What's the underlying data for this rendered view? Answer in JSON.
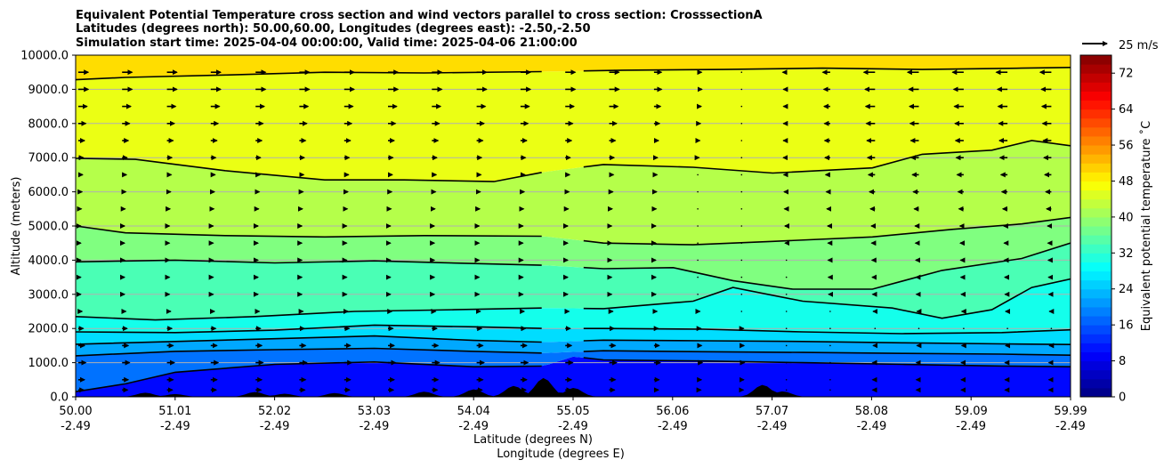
{
  "chart_data": {
    "type": "heatmap",
    "title_lines": [
      "Equivalent Potential Temperature cross section and wind vectors parallel to cross section: CrosssectionA",
      "Latitudes (degrees north): 50.00,60.00, Longitudes (degrees east): -2.50,-2.50",
      "Simulation start time: 2025-04-04 00:00:00, Valid time: 2025-04-06 21:00:00"
    ],
    "ylabel": "Altitude (meters)",
    "xlabel_lines": [
      "Latitude (degrees N)",
      "Longitude (degrees E)"
    ],
    "colorbar_label": "Equivalent potential temperature ˚C",
    "ylim": [
      0,
      10000
    ],
    "y_ticks": [
      "0.0",
      "1000.0",
      "2000.0",
      "3000.0",
      "4000.0",
      "5000.0",
      "6000.0",
      "7000.0",
      "8000.0",
      "9000.0",
      "10000.0"
    ],
    "y_tick_values": [
      0,
      1000,
      2000,
      3000,
      4000,
      5000,
      6000,
      7000,
      8000,
      9000,
      10000
    ],
    "x_ticks": [
      {
        "lat": "50.00",
        "lon": "-2.49"
      },
      {
        "lat": "51.01",
        "lon": "-2.49"
      },
      {
        "lat": "52.02",
        "lon": "-2.49"
      },
      {
        "lat": "53.03",
        "lon": "-2.49"
      },
      {
        "lat": "54.04",
        "lon": "-2.49"
      },
      {
        "lat": "55.05",
        "lon": "-2.49"
      },
      {
        "lat": "56.06",
        "lon": "-2.49"
      },
      {
        "lat": "57.07",
        "lon": "-2.49"
      },
      {
        "lat": "58.08",
        "lon": "-2.49"
      },
      {
        "lat": "59.09",
        "lon": "-2.49"
      },
      {
        "lat": "59.99",
        "lon": "-2.49"
      }
    ],
    "xlim": [
      50.0,
      59.99
    ],
    "colorbar_ticks": [
      "0",
      "8",
      "16",
      "24",
      "32",
      "40",
      "48",
      "56",
      "64",
      "72"
    ],
    "colorbar_range": [
      0,
      76
    ],
    "quiver_key_label": "25 m/s",
    "grid": "horizontal",
    "colormap": "jet",
    "contour_levels": [
      {
        "level": "48.0",
        "label_lat": 55.0,
        "heights": [
          [
            50.0,
            9280
          ],
          [
            50.5,
            9350
          ],
          [
            51.5,
            9420
          ],
          [
            52.5,
            9500
          ],
          [
            53.5,
            9480
          ],
          [
            54.7,
            9520
          ],
          [
            55.5,
            9560
          ],
          [
            56.5,
            9580
          ],
          [
            57.5,
            9620
          ],
          [
            58.5,
            9580
          ],
          [
            59.5,
            9620
          ],
          [
            59.99,
            9640
          ]
        ]
      },
      {
        "level": "44.0",
        "label_lat": 55.0,
        "heights": [
          [
            50.0,
            6980
          ],
          [
            50.6,
            6950
          ],
          [
            51.5,
            6620
          ],
          [
            52.5,
            6350
          ],
          [
            53.3,
            6350
          ],
          [
            54.2,
            6300
          ],
          [
            54.7,
            6580
          ],
          [
            55.3,
            6800
          ],
          [
            56.2,
            6720
          ],
          [
            57.0,
            6550
          ],
          [
            58.0,
            6700
          ],
          [
            58.5,
            7100
          ],
          [
            59.2,
            7220
          ],
          [
            59.6,
            7500
          ],
          [
            59.99,
            7350
          ]
        ]
      },
      {
        "level": "40.0",
        "label_lat": 55.0,
        "heights": [
          [
            50.0,
            5000
          ],
          [
            50.5,
            4800
          ],
          [
            51.5,
            4720
          ],
          [
            52.5,
            4680
          ],
          [
            53.5,
            4720
          ],
          [
            54.7,
            4700
          ],
          [
            55.3,
            4500
          ],
          [
            56.2,
            4450
          ],
          [
            57.0,
            4550
          ],
          [
            58.0,
            4680
          ],
          [
            58.8,
            4900
          ],
          [
            59.5,
            5060
          ],
          [
            59.99,
            5250
          ]
        ]
      },
      {
        "level": "36.0",
        "label_lat": 55.0,
        "heights": [
          [
            50.0,
            3950
          ],
          [
            51.0,
            4000
          ],
          [
            52.0,
            3920
          ],
          [
            53.0,
            3980
          ],
          [
            54.0,
            3900
          ],
          [
            54.7,
            3850
          ],
          [
            55.3,
            3750
          ],
          [
            56.0,
            3780
          ],
          [
            56.6,
            3400
          ],
          [
            57.2,
            3150
          ],
          [
            58.0,
            3150
          ],
          [
            58.7,
            3700
          ],
          [
            59.5,
            4050
          ],
          [
            59.99,
            4500
          ]
        ]
      },
      {
        "level": "32.0",
        "label_lat": 55.0,
        "heights": [
          [
            50.0,
            2350
          ],
          [
            50.8,
            2250
          ],
          [
            51.8,
            2350
          ],
          [
            52.8,
            2500
          ],
          [
            53.8,
            2550
          ],
          [
            54.7,
            2600
          ],
          [
            55.3,
            2580
          ],
          [
            56.2,
            2800
          ],
          [
            56.6,
            3200
          ],
          [
            57.3,
            2800
          ],
          [
            58.2,
            2600
          ],
          [
            58.7,
            2300
          ],
          [
            59.2,
            2550
          ],
          [
            59.6,
            3200
          ],
          [
            59.99,
            3450
          ]
        ]
      },
      {
        "level": "28.0",
        "label_lat": 55.0,
        "heights": [
          [
            50.0,
            1900
          ],
          [
            51.0,
            1880
          ],
          [
            52.0,
            1950
          ],
          [
            53.0,
            2100
          ],
          [
            54.0,
            2050
          ],
          [
            54.7,
            2000
          ],
          [
            55.3,
            2000
          ],
          [
            56.3,
            1980
          ],
          [
            57.3,
            1900
          ],
          [
            58.3,
            1850
          ],
          [
            59.3,
            1880
          ],
          [
            59.99,
            1960
          ]
        ]
      },
      {
        "level": "24.0",
        "label_lat": 55.0,
        "heights": [
          [
            50.0,
            1540
          ],
          [
            51.0,
            1620
          ],
          [
            52.0,
            1700
          ],
          [
            53.0,
            1780
          ],
          [
            54.0,
            1650
          ],
          [
            54.7,
            1600
          ],
          [
            55.3,
            1660
          ],
          [
            56.3,
            1640
          ],
          [
            57.3,
            1620
          ],
          [
            58.3,
            1580
          ],
          [
            59.3,
            1550
          ],
          [
            59.99,
            1530
          ]
        ]
      },
      {
        "level": "20.0",
        "label_lat": 55.0,
        "heights": [
          [
            50.0,
            1200
          ],
          [
            51.0,
            1330
          ],
          [
            52.0,
            1380
          ],
          [
            53.0,
            1420
          ],
          [
            54.0,
            1330
          ],
          [
            54.7,
            1280
          ],
          [
            55.3,
            1350
          ],
          [
            56.3,
            1320
          ],
          [
            57.3,
            1300
          ],
          [
            58.3,
            1270
          ],
          [
            59.3,
            1250
          ],
          [
            59.99,
            1220
          ]
        ]
      },
      {
        "level": "16.0",
        "label_lat": 55.0,
        "heights": [
          [
            50.0,
            150
          ],
          [
            50.5,
            380
          ],
          [
            51.0,
            720
          ],
          [
            52.0,
            950
          ],
          [
            53.0,
            1020
          ],
          [
            54.0,
            880
          ],
          [
            54.7,
            900
          ],
          [
            55.0,
            1180
          ],
          [
            55.3,
            1080
          ],
          [
            56.3,
            1050
          ],
          [
            57.3,
            1000
          ],
          [
            58.3,
            950
          ],
          [
            59.3,
            900
          ],
          [
            59.99,
            880
          ]
        ]
      }
    ],
    "wind_rows_m": [
      200,
      500,
      1000,
      1500,
      2000,
      2500,
      3000,
      3500,
      4000,
      4500,
      5000,
      5500,
      6000,
      6500,
      7000,
      7500,
      8000,
      8500,
      9000,
      9500,
      10000
    ],
    "wind_cols_lat": [
      50.0,
      50.44,
      50.89,
      51.33,
      51.78,
      52.22,
      52.67,
      53.11,
      53.55,
      54.0,
      54.44,
      54.89,
      55.33,
      55.78,
      56.22,
      56.66,
      57.11,
      57.55,
      58.0,
      58.44,
      58.89,
      59.33,
      59.77
    ],
    "wind_u_profile": [
      {
        "alt": 0,
        "u_west": 2,
        "u_east": -1
      },
      {
        "alt": 1000,
        "u_west": 3,
        "u_east": -1
      },
      {
        "alt": 2000,
        "u_west": 2,
        "u_east": -0.5
      },
      {
        "alt": 3000,
        "u_west": 1,
        "u_east": -1
      },
      {
        "alt": 5000,
        "u_west": 1,
        "u_east": -1.5
      },
      {
        "alt": 7000,
        "u_west": 2,
        "u_east": -3
      },
      {
        "alt": 9000,
        "u_west": 4,
        "u_east": -4
      },
      {
        "alt": 10000,
        "u_west": 4,
        "u_east": -5
      }
    ],
    "terrain_peaks": [
      {
        "lat": 50.7,
        "h": 120
      },
      {
        "lat": 51.0,
        "h": 80
      },
      {
        "lat": 51.8,
        "h": 140
      },
      {
        "lat": 52.1,
        "h": 90
      },
      {
        "lat": 52.6,
        "h": 110
      },
      {
        "lat": 53.5,
        "h": 150
      },
      {
        "lat": 54.0,
        "h": 220
      },
      {
        "lat": 54.4,
        "h": 320
      },
      {
        "lat": 54.7,
        "h": 550
      },
      {
        "lat": 55.0,
        "h": 260
      },
      {
        "lat": 56.9,
        "h": 350
      },
      {
        "lat": 57.1,
        "h": 160
      }
    ]
  }
}
